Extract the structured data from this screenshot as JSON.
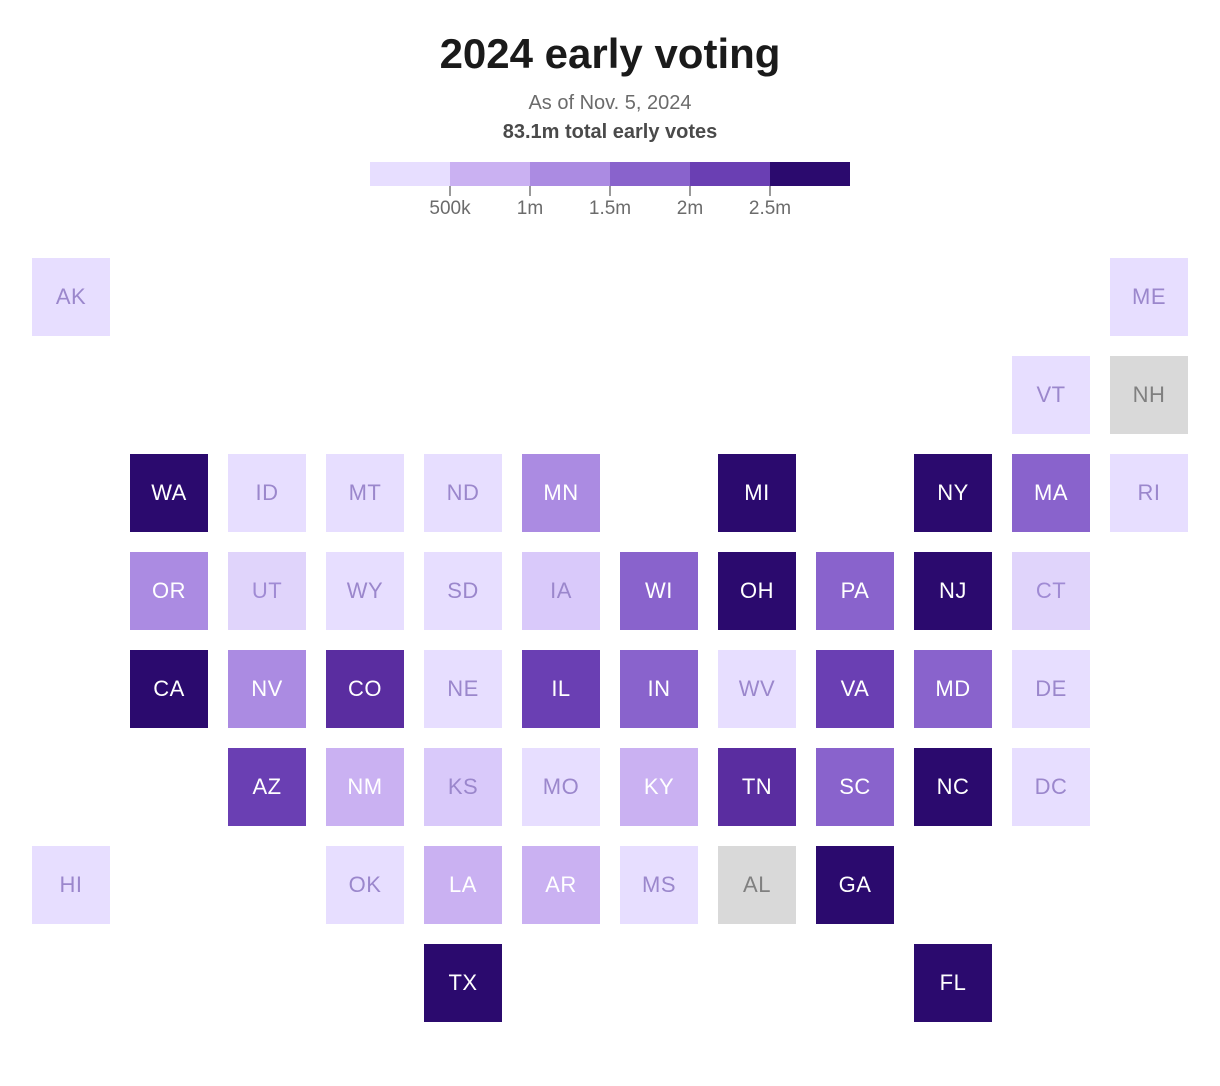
{
  "title": "2024 early voting",
  "subtitle": "As of Nov. 5, 2024",
  "total": "83.1m total early votes",
  "legend": {
    "colors": [
      "#e7deff",
      "#cab1f2",
      "#ab8be2",
      "#8963cc",
      "#6a3fb3",
      "#2b0a6e"
    ],
    "ticks": [
      "500k",
      "1m",
      "1.5m",
      "2m",
      "2.5m"
    ],
    "tick_fontsize": 19,
    "tick_color": "#6b6b6b"
  },
  "grid": {
    "cell_size": 78,
    "gap": 20,
    "cols": 12,
    "rows": 8
  },
  "na_color": "#d9d9d9",
  "states": [
    {
      "code": "AK",
      "row": 0,
      "col": 0,
      "fill": "#e7deff",
      "text": "#9b87cc"
    },
    {
      "code": "ME",
      "row": 0,
      "col": 11,
      "fill": "#e7deff",
      "text": "#9b87cc"
    },
    {
      "code": "VT",
      "row": 1,
      "col": 10,
      "fill": "#e7deff",
      "text": "#9b87cc"
    },
    {
      "code": "NH",
      "row": 1,
      "col": 11,
      "fill": "#d9d9d9",
      "text": "#808080"
    },
    {
      "code": "WA",
      "row": 2,
      "col": 1,
      "fill": "#2b0a6e",
      "text": "#ffffff"
    },
    {
      "code": "ID",
      "row": 2,
      "col": 2,
      "fill": "#e7deff",
      "text": "#9b87cc"
    },
    {
      "code": "MT",
      "row": 2,
      "col": 3,
      "fill": "#e7deff",
      "text": "#9b87cc"
    },
    {
      "code": "ND",
      "row": 2,
      "col": 4,
      "fill": "#e7deff",
      "text": "#9b87cc"
    },
    {
      "code": "MN",
      "row": 2,
      "col": 5,
      "fill": "#ab8be2",
      "text": "#ffffff"
    },
    {
      "code": "MI",
      "row": 2,
      "col": 7,
      "fill": "#2b0a6e",
      "text": "#ffffff"
    },
    {
      "code": "NY",
      "row": 2,
      "col": 9,
      "fill": "#2b0a6e",
      "text": "#ffffff"
    },
    {
      "code": "MA",
      "row": 2,
      "col": 10,
      "fill": "#8963cc",
      "text": "#ffffff"
    },
    {
      "code": "RI",
      "row": 2,
      "col": 11,
      "fill": "#e7deff",
      "text": "#9b87cc"
    },
    {
      "code": "OR",
      "row": 3,
      "col": 1,
      "fill": "#ab8be2",
      "text": "#ffffff"
    },
    {
      "code": "UT",
      "row": 3,
      "col": 2,
      "fill": "#e0d4fb",
      "text": "#a08bd4"
    },
    {
      "code": "WY",
      "row": 3,
      "col": 3,
      "fill": "#e7deff",
      "text": "#9b87cc"
    },
    {
      "code": "SD",
      "row": 3,
      "col": 4,
      "fill": "#e7deff",
      "text": "#9b87cc"
    },
    {
      "code": "IA",
      "row": 3,
      "col": 5,
      "fill": "#d9c9fa",
      "text": "#9b87cc"
    },
    {
      "code": "WI",
      "row": 3,
      "col": 6,
      "fill": "#8963cc",
      "text": "#ffffff"
    },
    {
      "code": "OH",
      "row": 3,
      "col": 7,
      "fill": "#2b0a6e",
      "text": "#ffffff"
    },
    {
      "code": "PA",
      "row": 3,
      "col": 8,
      "fill": "#8963cc",
      "text": "#ffffff"
    },
    {
      "code": "NJ",
      "row": 3,
      "col": 9,
      "fill": "#2b0a6e",
      "text": "#ffffff"
    },
    {
      "code": "CT",
      "row": 3,
      "col": 10,
      "fill": "#e0d4fb",
      "text": "#a08bd4"
    },
    {
      "code": "CA",
      "row": 4,
      "col": 1,
      "fill": "#2b0a6e",
      "text": "#ffffff"
    },
    {
      "code": "NV",
      "row": 4,
      "col": 2,
      "fill": "#ab8be2",
      "text": "#ffffff"
    },
    {
      "code": "CO",
      "row": 4,
      "col": 3,
      "fill": "#5a2da0",
      "text": "#ffffff"
    },
    {
      "code": "NE",
      "row": 4,
      "col": 4,
      "fill": "#e7deff",
      "text": "#9b87cc"
    },
    {
      "code": "IL",
      "row": 4,
      "col": 5,
      "fill": "#6a3fb3",
      "text": "#ffffff"
    },
    {
      "code": "IN",
      "row": 4,
      "col": 6,
      "fill": "#8963cc",
      "text": "#ffffff"
    },
    {
      "code": "WV",
      "row": 4,
      "col": 7,
      "fill": "#e7deff",
      "text": "#9b87cc"
    },
    {
      "code": "VA",
      "row": 4,
      "col": 8,
      "fill": "#6a3fb3",
      "text": "#ffffff"
    },
    {
      "code": "MD",
      "row": 4,
      "col": 9,
      "fill": "#8963cc",
      "text": "#ffffff"
    },
    {
      "code": "DE",
      "row": 4,
      "col": 10,
      "fill": "#e7deff",
      "text": "#9b87cc"
    },
    {
      "code": "AZ",
      "row": 5,
      "col": 2,
      "fill": "#6a3fb3",
      "text": "#ffffff"
    },
    {
      "code": "NM",
      "row": 5,
      "col": 3,
      "fill": "#cab1f2",
      "text": "#ffffff"
    },
    {
      "code": "KS",
      "row": 5,
      "col": 4,
      "fill": "#d9c9fa",
      "text": "#9b87cc"
    },
    {
      "code": "MO",
      "row": 5,
      "col": 5,
      "fill": "#e7deff",
      "text": "#9b87cc"
    },
    {
      "code": "KY",
      "row": 5,
      "col": 6,
      "fill": "#cab1f2",
      "text": "#ffffff"
    },
    {
      "code": "TN",
      "row": 5,
      "col": 7,
      "fill": "#5a2da0",
      "text": "#ffffff"
    },
    {
      "code": "SC",
      "row": 5,
      "col": 8,
      "fill": "#8963cc",
      "text": "#ffffff"
    },
    {
      "code": "NC",
      "row": 5,
      "col": 9,
      "fill": "#2b0a6e",
      "text": "#ffffff"
    },
    {
      "code": "DC",
      "row": 5,
      "col": 10,
      "fill": "#e7deff",
      "text": "#9b87cc"
    },
    {
      "code": "HI",
      "row": 6,
      "col": 0,
      "fill": "#e7deff",
      "text": "#9b87cc"
    },
    {
      "code": "OK",
      "row": 6,
      "col": 3,
      "fill": "#e7deff",
      "text": "#9b87cc"
    },
    {
      "code": "LA",
      "row": 6,
      "col": 4,
      "fill": "#cab1f2",
      "text": "#ffffff"
    },
    {
      "code": "AR",
      "row": 6,
      "col": 5,
      "fill": "#cab1f2",
      "text": "#ffffff"
    },
    {
      "code": "MS",
      "row": 6,
      "col": 6,
      "fill": "#e7deff",
      "text": "#9b87cc"
    },
    {
      "code": "AL",
      "row": 6,
      "col": 7,
      "fill": "#d9d9d9",
      "text": "#808080"
    },
    {
      "code": "GA",
      "row": 6,
      "col": 8,
      "fill": "#2b0a6e",
      "text": "#ffffff"
    },
    {
      "code": "TX",
      "row": 7,
      "col": 4,
      "fill": "#2b0a6e",
      "text": "#ffffff"
    },
    {
      "code": "FL",
      "row": 7,
      "col": 9,
      "fill": "#2b0a6e",
      "text": "#ffffff"
    }
  ]
}
